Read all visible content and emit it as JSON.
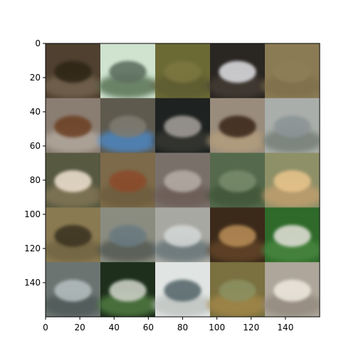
{
  "figure": {
    "x_axis": {
      "ticks": [
        0,
        20,
        40,
        60,
        80,
        100,
        120,
        140
      ],
      "tick_labels": [
        "0",
        "20",
        "40",
        "60",
        "80",
        "100",
        "120",
        "140"
      ],
      "range": [
        0,
        160
      ]
    },
    "y_axis": {
      "ticks": [
        0,
        20,
        40,
        60,
        80,
        100,
        120,
        140
      ],
      "tick_labels": [
        "0",
        "20",
        "40",
        "60",
        "80",
        "100",
        "120",
        "140"
      ],
      "range": [
        0,
        160
      ],
      "inverted": true
    },
    "grid": {
      "rows": 5,
      "cols": 5,
      "tile_size": 32,
      "tiles": [
        {
          "bg": "#4f4030",
          "blob": "#2f2519",
          "accent": "#7a6a55"
        },
        {
          "bg": "#cfe3cf",
          "blob": "#5f7060",
          "accent": "#3f5a3a"
        },
        {
          "bg": "#6b6a35",
          "blob": "#7c7640",
          "accent": "#5a5830"
        },
        {
          "bg": "#2a2622",
          "blob": "#d8d8dc",
          "accent": "#4a3f38"
        },
        {
          "bg": "#8b7b55",
          "blob": "#8e7e58",
          "accent": "#7d6e4b"
        },
        {
          "bg": "#8a7d72",
          "blob": "#6d4228",
          "accent": "#bab0a4"
        },
        {
          "bg": "#5f5a4e",
          "blob": "#7e7a70",
          "accent": "#4a8fd8"
        },
        {
          "bg": "#1e2220",
          "blob": "#9f9a95",
          "accent": "#3a3a36"
        },
        {
          "bg": "#9a8c7c",
          "blob": "#3c2a1a",
          "accent": "#b7a07c"
        },
        {
          "bg": "#a9aeaa",
          "blob": "#8c9496",
          "accent": "#6b756c"
        },
        {
          "bg": "#575940",
          "blob": "#e9dccb",
          "accent": "#8a7a5a"
        },
        {
          "bg": "#7c6a4a",
          "blob": "#8b4b2c",
          "accent": "#6b5a3a"
        },
        {
          "bg": "#7a706a",
          "blob": "#b3aaa3",
          "accent": "#6a5a52"
        },
        {
          "bg": "#556a4c",
          "blob": "#778a6b",
          "accent": "#3d5236"
        },
        {
          "bg": "#8e9068",
          "blob": "#e6c28a",
          "accent": "#c9a070"
        },
        {
          "bg": "#8a7a52",
          "blob": "#3c3424",
          "accent": "#6c6040"
        },
        {
          "bg": "#8a8c80",
          "blob": "#6a7a80",
          "accent": "#4a4f4a"
        },
        {
          "bg": "#a8a8a2",
          "blob": "#d2d6d4",
          "accent": "#5a6b70"
        },
        {
          "bg": "#3b2a1a",
          "blob": "#b48a54",
          "accent": "#6a4a2a"
        },
        {
          "bg": "#2f6a2a",
          "blob": "#dcdcd2",
          "accent": "#4d8c44"
        },
        {
          "bg": "#6c7472",
          "blob": "#b2bcbc",
          "accent": "#4a5452"
        },
        {
          "bg": "#1e2f1c",
          "blob": "#c9cfc3",
          "accent": "#5a8a4a"
        },
        {
          "bg": "#e0e4e2",
          "blob": "#5a6a6e",
          "accent": "#b9bebb"
        },
        {
          "bg": "#7a7040",
          "blob": "#8b9060",
          "accent": "#a98a4a"
        },
        {
          "bg": "#aea69a",
          "blob": "#ece6dc",
          "accent": "#8f857a"
        }
      ]
    }
  }
}
